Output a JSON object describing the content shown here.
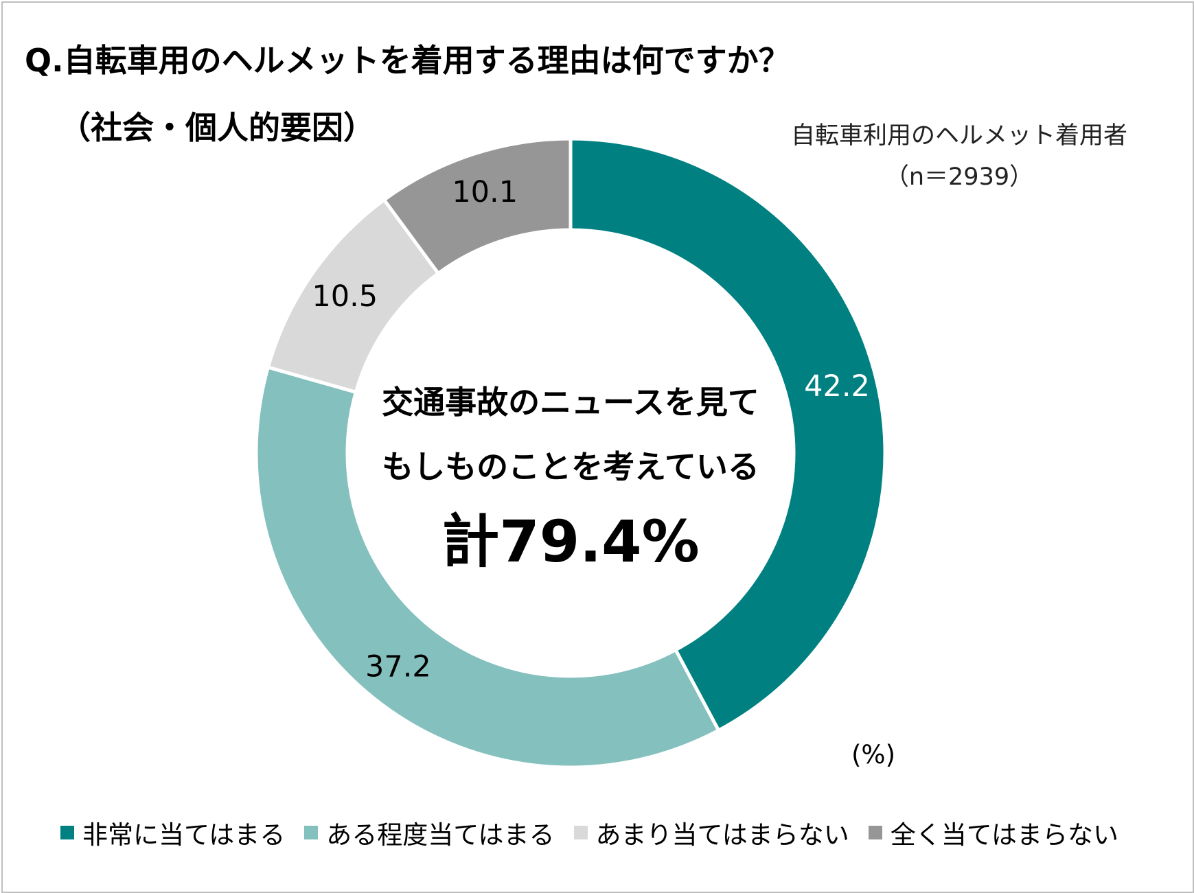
{
  "title": {
    "line1": "Q.自転車用のヘルメットを着用する理由は何ですか？",
    "line2": "（社会・個人的要因）"
  },
  "sample": {
    "line1": "自転車利用のヘルメット着用者",
    "line2": "（n＝2939）"
  },
  "center": {
    "line1": "交通事故のニュースを見て",
    "line2": "もしものことを考えている",
    "line3": "計79.4%"
  },
  "unit_label": "(%)",
  "colors": {
    "strong": "#008080",
    "somewhat": "#84c0be",
    "not_much": "#d9d9d9",
    "not_at_all": "#969696",
    "separator": "#ffffff"
  },
  "chart_data": {
    "type": "pie",
    "subtype": "donut",
    "title": "Q.自転車用のヘルメットを着用する理由は何ですか？（社会・個人的要因）",
    "unit": "%",
    "start": "12 o'clock, clockwise",
    "slices": [
      {
        "label": "非常に当てはまる",
        "value": 42.2,
        "color": "#008080",
        "label_color": "#ffffff"
      },
      {
        "label": "ある程度当てはまる",
        "value": 37.2,
        "color": "#84c0be",
        "label_color": "#000000"
      },
      {
        "label": "あまり当てはまらない",
        "value": 10.5,
        "color": "#d9d9d9",
        "label_color": "#000000"
      },
      {
        "label": "全く当てはまらない",
        "value": 10.1,
        "color": "#969696",
        "label_color": "#000000"
      }
    ],
    "legend_position": "bottom"
  }
}
